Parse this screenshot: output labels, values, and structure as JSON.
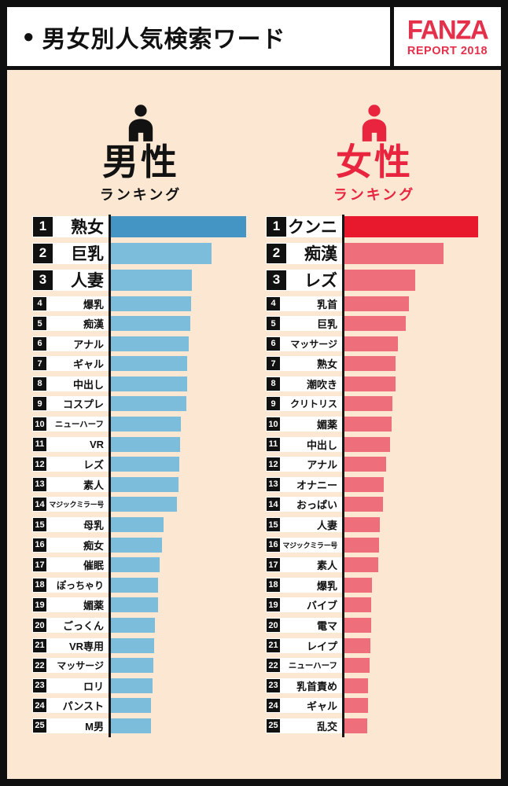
{
  "header": {
    "bullet": "●",
    "title": "男女別人気検索ワード",
    "logo": {
      "name": "FANZA",
      "sub": "REPORT 2018",
      "color": "#e4304a"
    }
  },
  "background_color": "#fbe7d2",
  "columns": [
    {
      "title": "男性",
      "subtitle": "ランキング",
      "accent": "#121212"
    },
    {
      "title": "女性",
      "subtitle": "ランキング",
      "accent": "#e8243f"
    }
  ],
  "chart_data": [
    {
      "type": "bar",
      "orientation": "horizontal",
      "title": "男性ランキング",
      "xlabel": "",
      "ylabel": "",
      "axis_note": "no numeric axis shown; values are relative bar lengths in px, max = 172",
      "categories": [
        "熟女",
        "巨乳",
        "人妻",
        "爆乳",
        "痴漢",
        "アナル",
        "ギャル",
        "中出し",
        "コスプレ",
        "ニューハーフ",
        "VR",
        "レズ",
        "素人",
        "マジックミラー号",
        "母乳",
        "痴女",
        "催眠",
        "ぽっちゃり",
        "媚薬",
        "ごっくん",
        "VR専用",
        "マッサージ",
        "ロリ",
        "パンスト",
        "M男"
      ],
      "values": [
        172,
        128,
        103,
        102,
        101,
        99,
        97,
        97,
        96,
        89,
        88,
        87,
        86,
        84,
        67,
        65,
        62,
        60,
        60,
        56,
        55,
        54,
        53,
        51,
        51
      ],
      "bar_color": "#7dbddc",
      "rank1_bar_color": "#4494c4"
    },
    {
      "type": "bar",
      "orientation": "horizontal",
      "title": "女性ランキング",
      "xlabel": "",
      "ylabel": "",
      "axis_note": "no numeric axis shown; values are relative bar lengths in px, max = 170",
      "categories": [
        "クンニ",
        "痴漢",
        "レズ",
        "乳首",
        "巨乳",
        "マッサージ",
        "熟女",
        "潮吹き",
        "クリトリス",
        "媚薬",
        "中出し",
        "アナル",
        "オナニー",
        "おっぱい",
        "人妻",
        "マジックミラー号",
        "素人",
        "爆乳",
        "バイブ",
        "電マ",
        "レイプ",
        "ニューハーフ",
        "乳首責め",
        "ギャル",
        "乱交"
      ],
      "values": [
        170,
        126,
        90,
        82,
        78,
        68,
        65,
        65,
        61,
        60,
        58,
        53,
        50,
        49,
        45,
        44,
        43,
        35,
        34,
        34,
        33,
        32,
        30,
        30,
        29
      ],
      "bar_color": "#ef6e7b",
      "rank1_bar_color": "#e8192c"
    }
  ]
}
